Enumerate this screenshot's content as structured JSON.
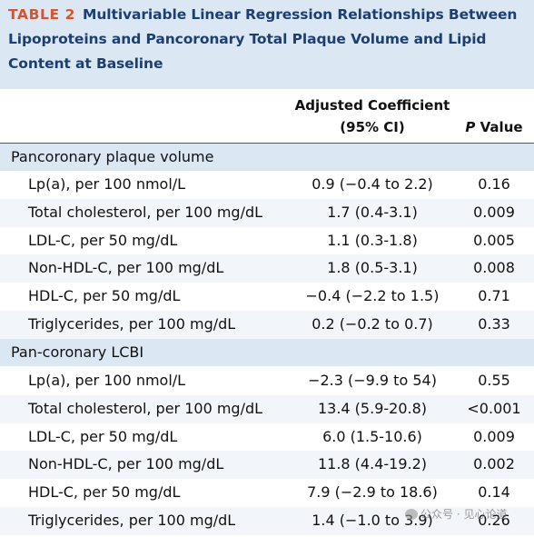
{
  "table": {
    "label": "TABLE 2",
    "title_lines": [
      "Multivariable Linear Regression Relationships Between",
      "Lipoproteins and Pancoronary Total Plaque Volume and Lipid",
      "Content at Baseline"
    ],
    "columns": {
      "coef_line1": "Adjusted Coefficient",
      "coef_line2": "(95% CI)",
      "p_italic": "P",
      "p_rest": " Value"
    },
    "sections": [
      {
        "title": "Pancoronary plaque volume",
        "rows": [
          {
            "label": "Lp(a), per 100 nmol/L",
            "coef": "0.9 (−0.4 to 2.2)",
            "p": "0.16"
          },
          {
            "label": "Total cholesterol, per 100 mg/dL",
            "coef": "1.7 (0.4-3.1)",
            "p": "0.009"
          },
          {
            "label": "LDL-C, per 50 mg/dL",
            "coef": "1.1 (0.3-1.8)",
            "p": "0.005"
          },
          {
            "label": "Non-HDL-C, per 100 mg/dL",
            "coef": "1.8 (0.5-3.1)",
            "p": "0.008"
          },
          {
            "label": "HDL-C, per 50 mg/dL",
            "coef": "−0.4 (−2.2 to 1.5)",
            "p": "0.71"
          },
          {
            "label": "Triglycerides, per 100 mg/dL",
            "coef": "0.2 (−0.2 to 0.7)",
            "p": "0.33"
          }
        ]
      },
      {
        "title": "Pan-coronary LCBI",
        "rows": [
          {
            "label": "Lp(a), per 100 nmol/L",
            "coef": "−2.3 (−9.9 to 54)",
            "p": "0.55"
          },
          {
            "label": "Total cholesterol, per 100 mg/dL",
            "coef": "13.4 (5.9-20.8)",
            "p": "<0.001"
          },
          {
            "label": "LDL-C, per 50 mg/dL",
            "coef": "6.0 (1.5-10.6)",
            "p": "0.009"
          },
          {
            "label": "Non-HDL-C, per 100 mg/dL",
            "coef": "11.8 (4.4-19.2)",
            "p": "0.002"
          },
          {
            "label": "HDL-C, per 50 mg/dL",
            "coef": "7.9 (−2.9 to 18.6)",
            "p": "0.14"
          },
          {
            "label": "Triglycerides, per 100 mg/dL",
            "coef": "1.4 (−1.0 to 3.9)",
            "p": "0.26"
          }
        ]
      }
    ]
  },
  "watermark": "公众号 · 见心论道"
}
